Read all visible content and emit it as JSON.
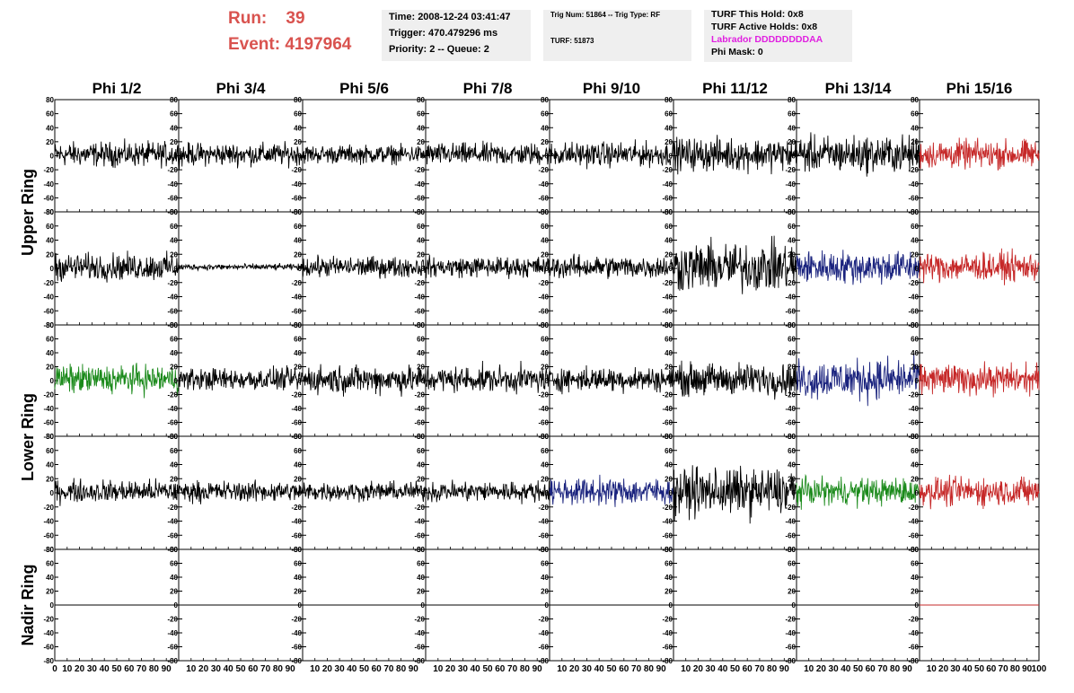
{
  "header": {
    "run_label": "Run:",
    "run_value": "39",
    "event_label": "Event:",
    "event_value": "4197964",
    "time_text": "Time: 2008-12-24 03:41:47",
    "trigger_text": "Trigger: 470.479296 ms",
    "priority_text": "Priority: 2 -- Queue: 2",
    "trig_num_text": "Trig Num: 51864 -- Trig Type: RF",
    "turf_text": "TURF: 51873",
    "turf_hold_text": "TURF This Hold: 0x8",
    "turf_active_text": "TURF Active Holds: 0x8",
    "labrador_text": "Labrador DDDDDDDDAA",
    "phi_mask_text": "Phi Mask: 0",
    "colors": {
      "run": "#d9534f",
      "labrador": "#e020e0",
      "box_bg": "#efefef"
    }
  },
  "chart_data": {
    "type": "line",
    "columns": [
      "Phi 1/2",
      "Phi 3/4",
      "Phi 5/6",
      "Phi 7/8",
      "Phi 9/10",
      "Phi 11/12",
      "Phi 13/14",
      "Phi 15/16"
    ],
    "rows": [
      "Upper Ring",
      "Lower Ring",
      "Nadir Ring"
    ],
    "ylim": [
      -80,
      80
    ],
    "y_ticks": [
      80,
      60,
      40,
      20,
      0,
      -20,
      -40,
      -60,
      -80
    ],
    "xlim": [
      0,
      100
    ],
    "x_ticks": [
      0,
      10,
      20,
      30,
      40,
      50,
      60,
      70,
      80,
      90
    ],
    "x_tick_labels_first": [
      "0",
      "10",
      "20",
      "30",
      "40",
      "50",
      "60",
      "70",
      "80",
      "90"
    ],
    "x_tick_labels_middle": [
      "10",
      "20",
      "30",
      "40",
      "50",
      "60",
      "70",
      "80",
      "90"
    ],
    "x_tick_labels_last": [
      "10",
      "20",
      "30",
      "40",
      "50",
      "60",
      "70",
      "80",
      "90",
      "100"
    ],
    "samples_per_trace": 260,
    "colors": {
      "black": "#000000",
      "red": "#c62828",
      "blue": "#1a237e",
      "green": "#1b8a1b"
    },
    "panels": [
      [
        {
          "color": "black",
          "amp": 12
        },
        {
          "color": "black",
          "amp": 11
        },
        {
          "color": "black",
          "amp": 9
        },
        {
          "color": "black",
          "amp": 11
        },
        {
          "color": "black",
          "amp": 12
        },
        {
          "color": "black",
          "amp": 16
        },
        {
          "color": "black",
          "amp": 18
        },
        {
          "color": "red",
          "amp": 14
        }
      ],
      [
        {
          "color": "black",
          "amp": 13
        },
        {
          "color": "black",
          "amp": 3
        },
        {
          "color": "black",
          "amp": 10
        },
        {
          "color": "black",
          "amp": 10
        },
        {
          "color": "black",
          "amp": 11
        },
        {
          "color": "black",
          "amp": 24
        },
        {
          "color": "blue",
          "amp": 16
        },
        {
          "color": "red",
          "amp": 14
        }
      ],
      [
        {
          "color": "green",
          "amp": 14
        },
        {
          "color": "black",
          "amp": 11
        },
        {
          "color": "black",
          "amp": 14
        },
        {
          "color": "black",
          "amp": 13
        },
        {
          "color": "black",
          "amp": 12
        },
        {
          "color": "black",
          "amp": 16
        },
        {
          "color": "blue",
          "amp": 20
        },
        {
          "color": "red",
          "amp": 15
        }
      ],
      [
        {
          "color": "black",
          "amp": 11
        },
        {
          "color": "black",
          "amp": 10
        },
        {
          "color": "black",
          "amp": 9
        },
        {
          "color": "black",
          "amp": 10
        },
        {
          "color": "blue",
          "amp": 13
        },
        {
          "color": "black",
          "amp": 23
        },
        {
          "color": "green",
          "amp": 13
        },
        {
          "color": "red",
          "amp": 14
        }
      ],
      [
        {
          "color": "black",
          "amp": 0
        },
        {
          "color": "black",
          "amp": 0
        },
        {
          "color": "black",
          "amp": 0
        },
        {
          "color": "black",
          "amp": 0
        },
        {
          "color": "black",
          "amp": 0
        },
        {
          "color": "black",
          "amp": 0
        },
        {
          "color": "black",
          "amp": 0
        },
        {
          "color": "red",
          "amp": 0
        }
      ]
    ]
  }
}
